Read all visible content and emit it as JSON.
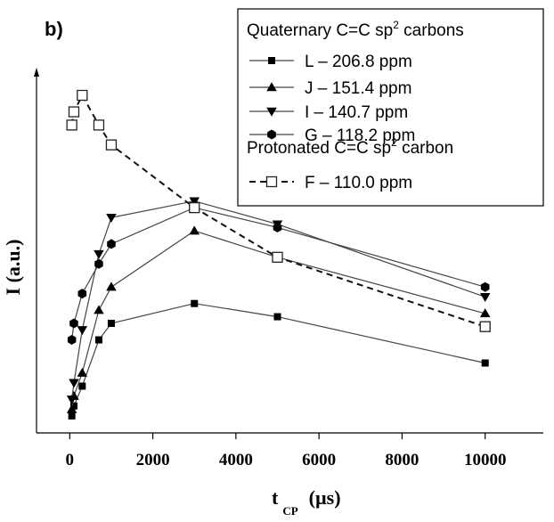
{
  "panel_label": "b)",
  "chart_data": {
    "type": "line",
    "xlabel_main": "t",
    "xlabel_sub": "CP",
    "xlabel_unit": "(µs)",
    "ylabel": "I (a.u.)",
    "xlim": [
      -800,
      11400
    ],
    "ylim": [
      0,
      100
    ],
    "x_ticks": [
      0,
      2000,
      4000,
      6000,
      8000,
      10000
    ],
    "x_tick_labels": [
      "0",
      "2000",
      "4000",
      "6000",
      "8000",
      "10000"
    ],
    "legend": {
      "group1_title_pre": "Quaternary C=C sp",
      "group1_title_sup": "2",
      "group1_title_post": " carbons",
      "group2_title": "Protonated C=C sp",
      "group2_title_sup": "2",
      "group2_title_post": " carbon"
    },
    "series": [
      {
        "name": "L – 206.8 ppm",
        "marker": "square",
        "dashed": false,
        "x": [
          50,
          100,
          300,
          700,
          1000,
          3000,
          5000,
          10000
        ],
        "y": [
          3,
          6,
          12,
          26,
          31,
          37,
          33,
          19
        ]
      },
      {
        "name": "J – 151.4 ppm",
        "marker": "triangle-up",
        "dashed": false,
        "x": [
          50,
          100,
          300,
          700,
          1000,
          3000,
          5000,
          10000
        ],
        "y": [
          5,
          9,
          16,
          35,
          42,
          59,
          51,
          34
        ]
      },
      {
        "name": "I – 140.7 ppm",
        "marker": "triangle-down",
        "dashed": false,
        "x": [
          50,
          100,
          300,
          700,
          1000,
          3000,
          5000,
          10000
        ],
        "y": [
          8,
          13,
          29,
          52,
          63,
          68,
          61,
          39
        ]
      },
      {
        "name": "G – 118.2 ppm",
        "marker": "hexagon",
        "dashed": false,
        "x": [
          50,
          100,
          300,
          700,
          1000,
          3000,
          5000,
          10000
        ],
        "y": [
          26,
          31,
          40,
          49,
          55,
          66,
          60,
          42
        ]
      },
      {
        "name": "F – 110.0 ppm",
        "marker": "square-open",
        "dashed": true,
        "x": [
          50,
          100,
          300,
          700,
          1000,
          3000,
          5000,
          10000
        ],
        "y": [
          91,
          95,
          100,
          91,
          85,
          66,
          51,
          30
        ]
      }
    ]
  }
}
